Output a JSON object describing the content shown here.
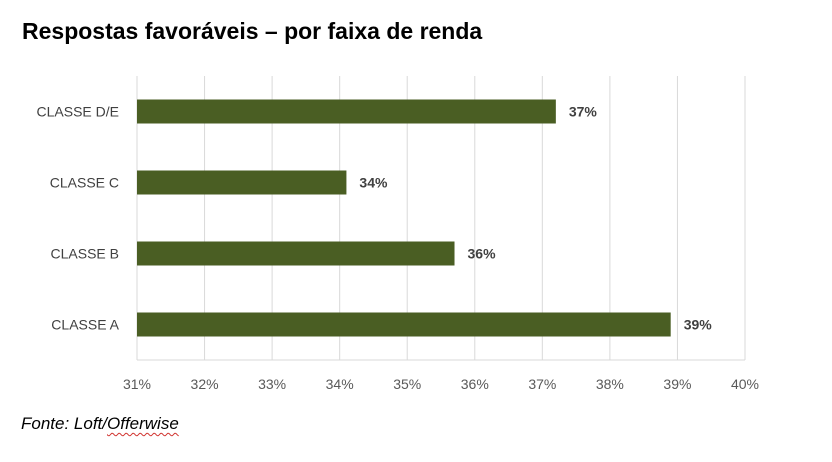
{
  "title": "Respostas favoráveis – por faixa de renda",
  "source": {
    "prefix": "Fonte: Loft/",
    "marked": "Offerwise"
  },
  "chart_data": {
    "type": "bar",
    "orientation": "horizontal",
    "categories": [
      "CLASSE D/E",
      "CLASSE C",
      "CLASSE B",
      "CLASSE A"
    ],
    "values": [
      37.2,
      34.1,
      35.7,
      38.9
    ],
    "data_labels": [
      "37%",
      "34%",
      "36%",
      "39%"
    ],
    "xlim": [
      31,
      40
    ],
    "xticks": [
      31,
      32,
      33,
      34,
      35,
      36,
      37,
      38,
      39,
      40
    ],
    "xtick_labels": [
      "31%",
      "32%",
      "33%",
      "34%",
      "35%",
      "36%",
      "37%",
      "38%",
      "39%",
      "40%"
    ],
    "grid": true,
    "legend": "none",
    "bar_color": "#4a5e23"
  }
}
